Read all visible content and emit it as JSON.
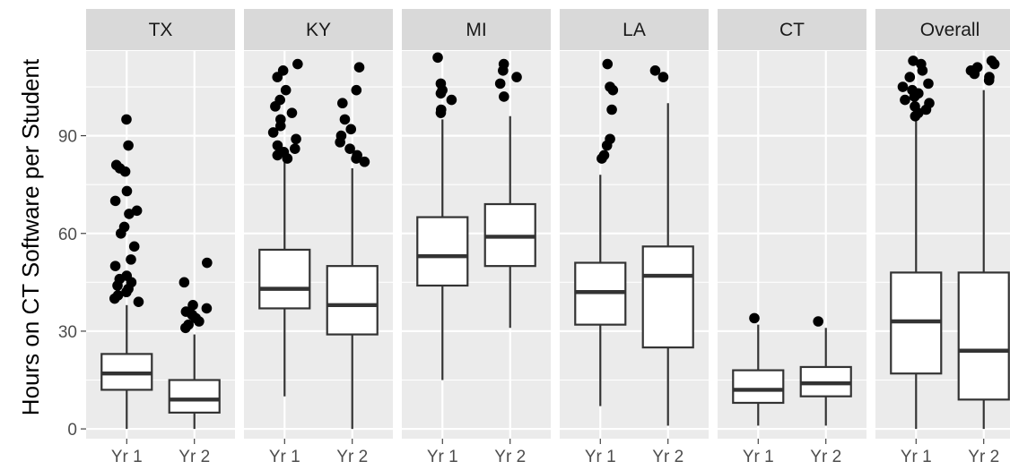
{
  "chart_data": {
    "type": "box",
    "ylabel": "Hours on CT Software per Student",
    "xlabel": "",
    "ylim": [
      -3,
      116
    ],
    "y_ticks": [
      0,
      30,
      60,
      90
    ],
    "x_categories": [
      "Yr 1",
      "Yr 2"
    ],
    "panels": [
      {
        "name": "TX",
        "boxes": [
          {
            "category": "Yr 1",
            "min": 0,
            "q1": 12,
            "median": 17,
            "q3": 23,
            "max": 38,
            "outliers": [
              95,
              87,
              81,
              80,
              79,
              73,
              70,
              67,
              66,
              62,
              60,
              56,
              52,
              50,
              47,
              46,
              45,
              44,
              43,
              42,
              41,
              40,
              39
            ]
          },
          {
            "category": "Yr 2",
            "min": 0,
            "q1": 5,
            "median": 9,
            "q3": 15,
            "max": 29,
            "outliers": [
              51,
              45,
              38,
              37,
              36,
              35,
              34,
              33,
              32,
              31
            ]
          }
        ]
      },
      {
        "name": "KY",
        "boxes": [
          {
            "category": "Yr 1",
            "min": 10,
            "q1": 37,
            "median": 43,
            "q3": 55,
            "max": 82,
            "outliers": [
              112,
              110,
              108,
              104,
              101,
              99,
              97,
              95,
              93,
              91,
              89,
              87,
              86,
              85,
              84,
              83
            ]
          },
          {
            "category": "Yr 2",
            "min": 0,
            "q1": 29,
            "median": 38,
            "q3": 50,
            "max": 80,
            "outliers": [
              115,
              111,
              104,
              100,
              95,
              92,
              90,
              88,
              86,
              84,
              83,
              82
            ]
          }
        ]
      },
      {
        "name": "MI",
        "boxes": [
          {
            "category": "Yr 1",
            "min": 15,
            "q1": 44,
            "median": 53,
            "q3": 65,
            "max": 95,
            "outliers": [
              114,
              106,
              104,
              103,
              101,
              98,
              97
            ]
          },
          {
            "category": "Yr 2",
            "min": 31,
            "q1": 50,
            "median": 59,
            "q3": 69,
            "max": 96,
            "outliers": [
              112,
              110,
              108,
              106,
              102
            ]
          }
        ]
      },
      {
        "name": "LA",
        "boxes": [
          {
            "category": "Yr 1",
            "min": 7,
            "q1": 32,
            "median": 42,
            "q3": 51,
            "max": 78,
            "outliers": [
              112,
              105,
              104,
              98,
              89,
              87,
              84,
              83
            ]
          },
          {
            "category": "Yr 2",
            "min": 1,
            "q1": 25,
            "median": 47,
            "q3": 56,
            "max": 100,
            "outliers": [
              110,
              108
            ]
          }
        ]
      },
      {
        "name": "CT",
        "boxes": [
          {
            "category": "Yr 1",
            "min": 1,
            "q1": 8,
            "median": 12,
            "q3": 18,
            "max": 32,
            "outliers": [
              34
            ]
          },
          {
            "category": "Yr 2",
            "min": 1,
            "q1": 10,
            "median": 14,
            "q3": 19,
            "max": 31,
            "outliers": [
              33
            ]
          }
        ]
      },
      {
        "name": "Overall",
        "boxes": [
          {
            "category": "Yr 1",
            "min": 0,
            "q1": 17,
            "median": 33,
            "q3": 48,
            "max": 95,
            "outliers": [
              113,
              112,
              110,
              108,
              106,
              105,
              104,
              103,
              102,
              101,
              100,
              99,
              98,
              97,
              96
            ]
          },
          {
            "category": "Yr 2",
            "min": 0,
            "q1": 9,
            "median": 24,
            "q3": 48,
            "max": 104,
            "outliers": [
              115,
              113,
              112,
              111,
              110,
              109,
              108,
              107
            ]
          }
        ]
      }
    ],
    "grid": true,
    "legend": "none",
    "colors": {
      "panel_background": "#ebebeb",
      "strip_background": "#d9d9d9",
      "grid": "#ffffff",
      "box_fill": "#ffffff",
      "box_line": "#333333",
      "outlier": "#000000"
    }
  }
}
